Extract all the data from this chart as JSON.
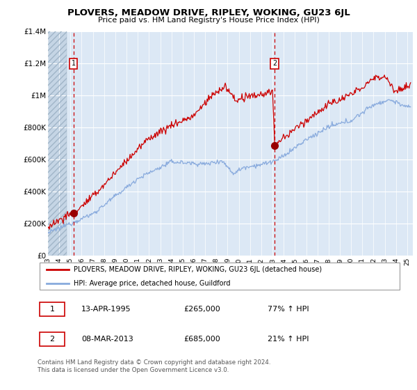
{
  "title": "PLOVERS, MEADOW DRIVE, RIPLEY, WOKING, GU23 6JL",
  "subtitle": "Price paid vs. HM Land Registry's House Price Index (HPI)",
  "ylim": [
    0,
    1400000
  ],
  "yticks": [
    0,
    200000,
    400000,
    600000,
    800000,
    1000000,
    1200000,
    1400000
  ],
  "ytick_labels": [
    "£0",
    "£200K",
    "£400K",
    "£600K",
    "£800K",
    "£1M",
    "£1.2M",
    "£1.4M"
  ],
  "xlim_year": [
    1993,
    2025.5
  ],
  "xtick_years": [
    1993,
    1994,
    1995,
    1996,
    1997,
    1998,
    1999,
    2000,
    2001,
    2002,
    2003,
    2004,
    2005,
    2006,
    2007,
    2008,
    2009,
    2010,
    2011,
    2012,
    2013,
    2014,
    2015,
    2016,
    2017,
    2018,
    2019,
    2020,
    2021,
    2022,
    2023,
    2024,
    2025
  ],
  "legend_line1": "PLOVERS, MEADOW DRIVE, RIPLEY, WOKING, GU23 6JL (detached house)",
  "legend_line2": "HPI: Average price, detached house, Guildford",
  "legend_color1": "#cc0000",
  "legend_color2": "#88aadd",
  "annotation1_label": "1",
  "annotation1_date": "13-APR-1995",
  "annotation1_price": "£265,000",
  "annotation1_hpi": "77% ↑ HPI",
  "annotation1_year": 1995.28,
  "annotation1_value": 265000,
  "annotation2_label": "2",
  "annotation2_date": "08-MAR-2013",
  "annotation2_price": "£685,000",
  "annotation2_hpi": "21% ↑ HPI",
  "annotation2_year": 2013.18,
  "annotation2_value": 685000,
  "footnote": "Contains HM Land Registry data © Crown copyright and database right 2024.\nThis data is licensed under the Open Government Licence v3.0.",
  "bg_color": "#dce8f5",
  "hatch_end_year": 1994.7,
  "hpi_line_color": "#88aadd",
  "price_line_color": "#cc0000"
}
